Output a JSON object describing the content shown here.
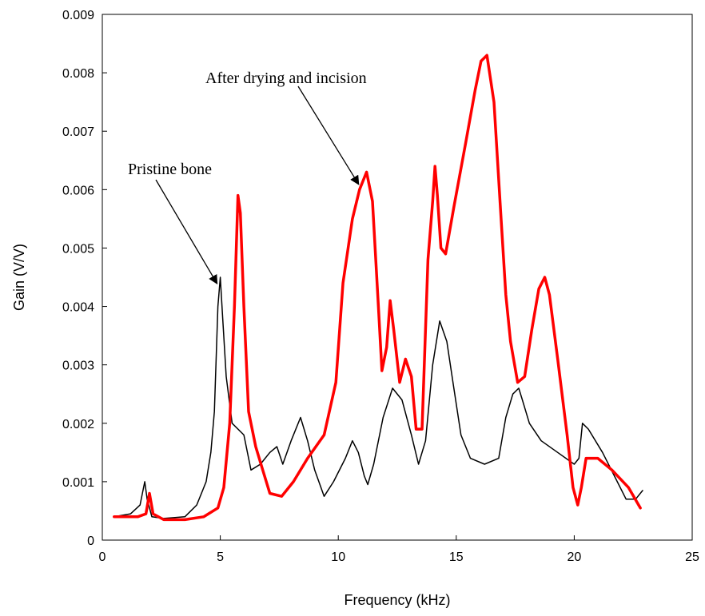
{
  "chart_data": {
    "type": "line",
    "xlabel": "Frequency (kHz)",
    "ylabel": "Gain (V/V)",
    "xlim": [
      0,
      25
    ],
    "ylim": [
      0,
      0.009
    ],
    "xticks": [
      "0",
      "5",
      "10",
      "15",
      "20",
      "25"
    ],
    "yticks": [
      "0",
      "0.001",
      "0.002",
      "0.003",
      "0.004",
      "0.005",
      "0.006",
      "0.007",
      "0.008",
      "0.009"
    ],
    "grid": false,
    "legend": "none",
    "series": [
      {
        "color": "#000000",
        "points": [
          [
            0.5,
            0.0004
          ],
          [
            1.2,
            0.00045
          ],
          [
            1.6,
            0.0006
          ],
          [
            1.8,
            0.001
          ],
          [
            1.9,
            0.0007
          ],
          [
            2.1,
            0.0004
          ],
          [
            2.6,
            0.00037
          ],
          [
            3.5,
            0.0004
          ],
          [
            4.0,
            0.0006
          ],
          [
            4.4,
            0.001
          ],
          [
            4.6,
            0.0015
          ],
          [
            4.75,
            0.0022
          ],
          [
            4.9,
            0.004
          ],
          [
            5.0,
            0.0045
          ],
          [
            5.1,
            0.0038
          ],
          [
            5.25,
            0.0028
          ],
          [
            5.5,
            0.002
          ],
          [
            6.0,
            0.0018
          ],
          [
            6.3,
            0.0012
          ],
          [
            6.7,
            0.0013
          ],
          [
            7.1,
            0.0015
          ],
          [
            7.4,
            0.0016
          ],
          [
            7.65,
            0.0013
          ],
          [
            8.0,
            0.0017
          ],
          [
            8.4,
            0.0021
          ],
          [
            8.7,
            0.0017
          ],
          [
            9.0,
            0.0012
          ],
          [
            9.4,
            0.00075
          ],
          [
            9.8,
            0.001
          ],
          [
            10.3,
            0.0014
          ],
          [
            10.6,
            0.0017
          ],
          [
            10.85,
            0.0015
          ],
          [
            11.1,
            0.0011
          ],
          [
            11.25,
            0.00095
          ],
          [
            11.5,
            0.0013
          ],
          [
            11.9,
            0.0021
          ],
          [
            12.3,
            0.0026
          ],
          [
            12.7,
            0.0024
          ],
          [
            13.1,
            0.0018
          ],
          [
            13.4,
            0.0013
          ],
          [
            13.7,
            0.0017
          ],
          [
            14.0,
            0.003
          ],
          [
            14.3,
            0.00375
          ],
          [
            14.6,
            0.0034
          ],
          [
            14.9,
            0.0026
          ],
          [
            15.2,
            0.0018
          ],
          [
            15.6,
            0.0014
          ],
          [
            16.2,
            0.0013
          ],
          [
            16.8,
            0.0014
          ],
          [
            17.1,
            0.0021
          ],
          [
            17.4,
            0.0025
          ],
          [
            17.65,
            0.0026
          ],
          [
            17.8,
            0.0024
          ],
          [
            18.1,
            0.002
          ],
          [
            18.6,
            0.0017
          ],
          [
            19.3,
            0.0015
          ],
          [
            20.0,
            0.0013
          ],
          [
            20.2,
            0.0014
          ],
          [
            20.35,
            0.002
          ],
          [
            20.6,
            0.0019
          ],
          [
            21.2,
            0.0015
          ],
          [
            21.7,
            0.0011
          ],
          [
            22.2,
            0.0007
          ],
          [
            22.6,
            0.0007
          ],
          [
            22.9,
            0.00085
          ]
        ]
      },
      {
        "color": "#ff0000",
        "points": [
          [
            0.5,
            0.0004
          ],
          [
            1.5,
            0.0004
          ],
          [
            1.85,
            0.00045
          ],
          [
            2.0,
            0.0008
          ],
          [
            2.15,
            0.00045
          ],
          [
            2.6,
            0.00035
          ],
          [
            3.5,
            0.00035
          ],
          [
            4.3,
            0.0004
          ],
          [
            4.9,
            0.00055
          ],
          [
            5.15,
            0.0009
          ],
          [
            5.4,
            0.002
          ],
          [
            5.6,
            0.004
          ],
          [
            5.75,
            0.0059
          ],
          [
            5.85,
            0.0056
          ],
          [
            6.0,
            0.004
          ],
          [
            6.2,
            0.0022
          ],
          [
            6.5,
            0.0016
          ],
          [
            6.8,
            0.0012
          ],
          [
            7.1,
            0.0008
          ],
          [
            7.6,
            0.00075
          ],
          [
            8.1,
            0.001
          ],
          [
            8.7,
            0.0014
          ],
          [
            9.4,
            0.0018
          ],
          [
            9.9,
            0.0027
          ],
          [
            10.2,
            0.0044
          ],
          [
            10.6,
            0.0055
          ],
          [
            10.9,
            0.006
          ],
          [
            11.2,
            0.0063
          ],
          [
            11.45,
            0.0058
          ],
          [
            11.7,
            0.004
          ],
          [
            11.85,
            0.0029
          ],
          [
            12.05,
            0.0033
          ],
          [
            12.2,
            0.0041
          ],
          [
            12.35,
            0.0036
          ],
          [
            12.6,
            0.0027
          ],
          [
            12.85,
            0.0031
          ],
          [
            13.1,
            0.0028
          ],
          [
            13.3,
            0.0019
          ],
          [
            13.55,
            0.0019
          ],
          [
            13.8,
            0.0048
          ],
          [
            14.0,
            0.0058
          ],
          [
            14.1,
            0.0064
          ],
          [
            14.2,
            0.0059
          ],
          [
            14.35,
            0.005
          ],
          [
            14.55,
            0.0049
          ],
          [
            14.9,
            0.0057
          ],
          [
            15.4,
            0.0068
          ],
          [
            15.8,
            0.0077
          ],
          [
            16.05,
            0.0082
          ],
          [
            16.3,
            0.0083
          ],
          [
            16.6,
            0.0075
          ],
          [
            16.9,
            0.0055
          ],
          [
            17.1,
            0.0042
          ],
          [
            17.3,
            0.0034
          ],
          [
            17.6,
            0.0027
          ],
          [
            17.9,
            0.0028
          ],
          [
            18.2,
            0.0036
          ],
          [
            18.5,
            0.0043
          ],
          [
            18.75,
            0.0045
          ],
          [
            18.95,
            0.0042
          ],
          [
            19.3,
            0.0031
          ],
          [
            19.7,
            0.0018
          ],
          [
            19.95,
            0.0009
          ],
          [
            20.15,
            0.0006
          ],
          [
            20.3,
            0.0009
          ],
          [
            20.5,
            0.0014
          ],
          [
            21.0,
            0.0014
          ],
          [
            21.6,
            0.0012
          ],
          [
            22.3,
            0.0009
          ],
          [
            22.8,
            0.00055
          ]
        ]
      }
    ],
    "annotations": [
      {
        "text": "Pristine bone",
        "target": [
          5.0,
          0.0045
        ]
      },
      {
        "text": "After drying and incision",
        "target": [
          11.0,
          0.0062
        ]
      }
    ]
  }
}
